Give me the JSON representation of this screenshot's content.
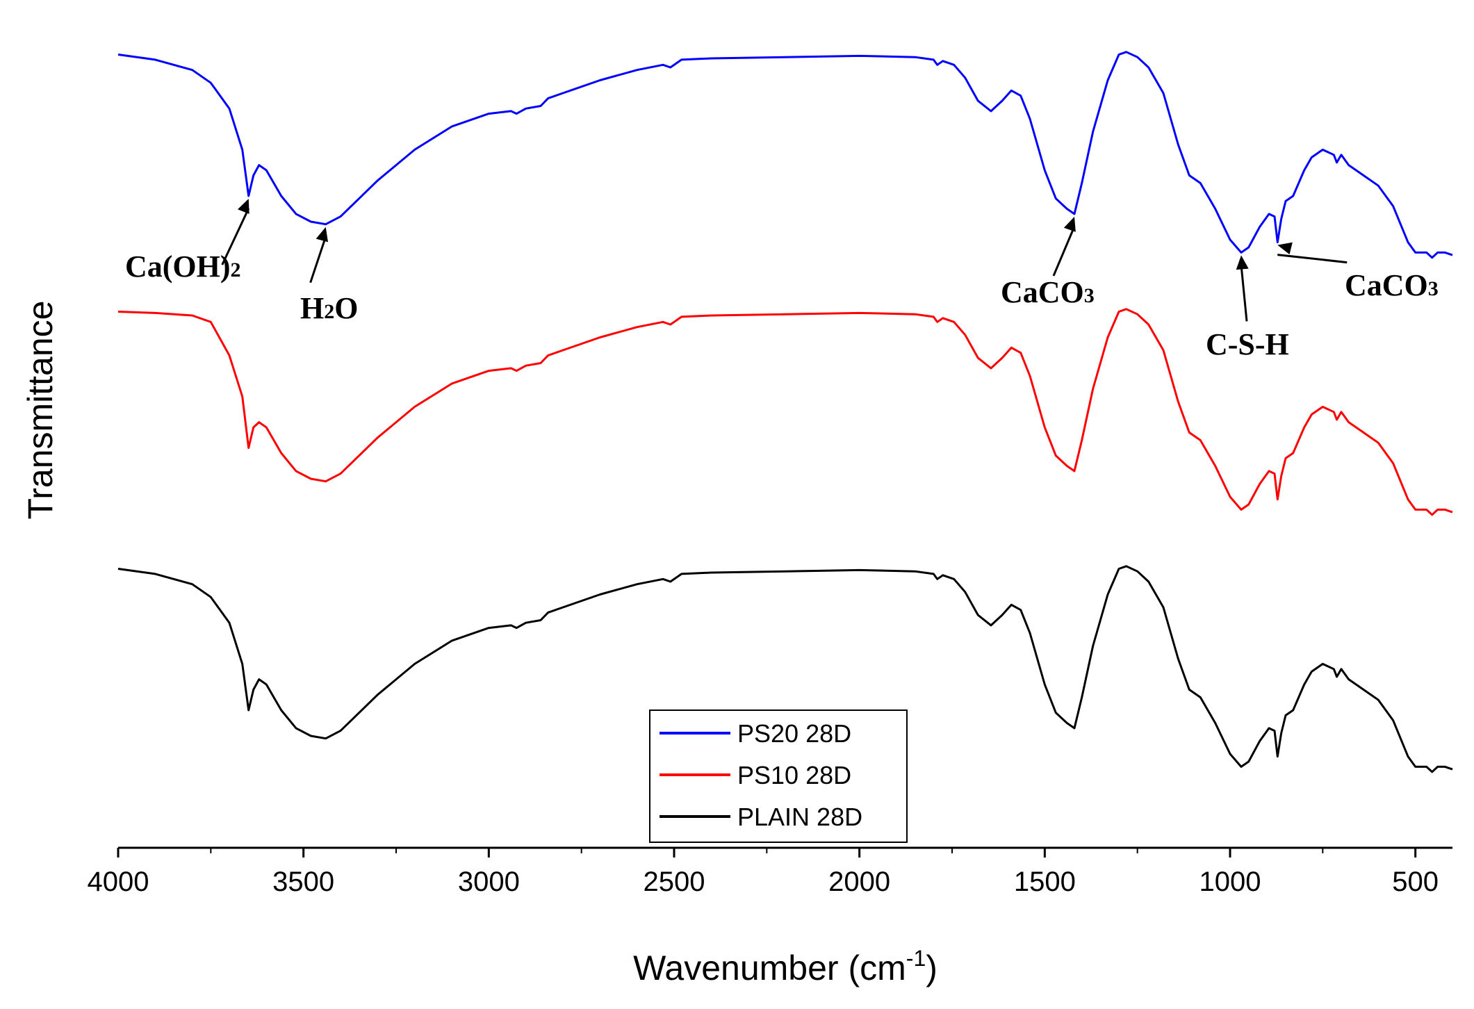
{
  "chart_data": {
    "type": "line",
    "xlabel": "Wavenumber (cm",
    "xlabel_sup": "-1",
    "xlabel_close": ")",
    "ylabel": "Transmittance",
    "xlim": [
      4000,
      400
    ],
    "x_reversed": true,
    "x_ticks": [
      4000,
      3500,
      3000,
      2500,
      2000,
      1500,
      1000,
      500
    ],
    "y_ticks_shown": false,
    "grid": false,
    "legend_position": "bottom-center",
    "series": [
      {
        "name": "PS20 28D",
        "color": "#0000ff",
        "offset": 2.0,
        "points": [
          [
            4000,
            0.95
          ],
          [
            3900,
            0.93
          ],
          [
            3800,
            0.89
          ],
          [
            3750,
            0.84
          ],
          [
            3700,
            0.74
          ],
          [
            3665,
            0.58
          ],
          [
            3648,
            0.4
          ],
          [
            3635,
            0.48
          ],
          [
            3620,
            0.52
          ],
          [
            3600,
            0.5
          ],
          [
            3560,
            0.4
          ],
          [
            3520,
            0.33
          ],
          [
            3480,
            0.3
          ],
          [
            3440,
            0.29
          ],
          [
            3400,
            0.32
          ],
          [
            3350,
            0.39
          ],
          [
            3300,
            0.46
          ],
          [
            3250,
            0.52
          ],
          [
            3200,
            0.58
          ],
          [
            3100,
            0.67
          ],
          [
            3000,
            0.72
          ],
          [
            2940,
            0.73
          ],
          [
            2925,
            0.72
          ],
          [
            2900,
            0.74
          ],
          [
            2860,
            0.75
          ],
          [
            2840,
            0.78
          ],
          [
            2800,
            0.8
          ],
          [
            2700,
            0.85
          ],
          [
            2600,
            0.89
          ],
          [
            2530,
            0.91
          ],
          [
            2510,
            0.9
          ],
          [
            2480,
            0.93
          ],
          [
            2400,
            0.935
          ],
          [
            2200,
            0.94
          ],
          [
            2000,
            0.945
          ],
          [
            1850,
            0.94
          ],
          [
            1800,
            0.93
          ],
          [
            1790,
            0.91
          ],
          [
            1775,
            0.925
          ],
          [
            1745,
            0.91
          ],
          [
            1715,
            0.86
          ],
          [
            1680,
            0.77
          ],
          [
            1645,
            0.73
          ],
          [
            1615,
            0.77
          ],
          [
            1590,
            0.81
          ],
          [
            1565,
            0.79
          ],
          [
            1540,
            0.7
          ],
          [
            1500,
            0.5
          ],
          [
            1470,
            0.39
          ],
          [
            1440,
            0.35
          ],
          [
            1420,
            0.33
          ],
          [
            1400,
            0.45
          ],
          [
            1370,
            0.65
          ],
          [
            1330,
            0.85
          ],
          [
            1300,
            0.95
          ],
          [
            1280,
            0.96
          ],
          [
            1250,
            0.94
          ],
          [
            1220,
            0.9
          ],
          [
            1180,
            0.8
          ],
          [
            1140,
            0.6
          ],
          [
            1110,
            0.48
          ],
          [
            1080,
            0.45
          ],
          [
            1040,
            0.35
          ],
          [
            1000,
            0.23
          ],
          [
            970,
            0.18
          ],
          [
            950,
            0.2
          ],
          [
            920,
            0.28
          ],
          [
            895,
            0.33
          ],
          [
            880,
            0.32
          ],
          [
            872,
            0.22
          ],
          [
            862,
            0.31
          ],
          [
            850,
            0.38
          ],
          [
            830,
            0.4
          ],
          [
            800,
            0.5
          ],
          [
            780,
            0.55
          ],
          [
            750,
            0.58
          ],
          [
            720,
            0.56
          ],
          [
            712,
            0.53
          ],
          [
            700,
            0.56
          ],
          [
            680,
            0.52
          ],
          [
            640,
            0.48
          ],
          [
            600,
            0.44
          ],
          [
            560,
            0.36
          ],
          [
            520,
            0.22
          ],
          [
            500,
            0.18
          ],
          [
            470,
            0.18
          ],
          [
            455,
            0.16
          ],
          [
            440,
            0.18
          ],
          [
            420,
            0.18
          ],
          [
            400,
            0.17
          ]
        ]
      },
      {
        "name": "PS10 28D",
        "color": "#ff0000",
        "offset": 1.0,
        "points": [
          [
            4000,
            0.95
          ],
          [
            3900,
            0.945
          ],
          [
            3800,
            0.935
          ],
          [
            3750,
            0.91
          ],
          [
            3700,
            0.78
          ],
          [
            3665,
            0.62
          ],
          [
            3648,
            0.42
          ],
          [
            3635,
            0.5
          ],
          [
            3620,
            0.52
          ],
          [
            3600,
            0.5
          ],
          [
            3560,
            0.4
          ],
          [
            3520,
            0.33
          ],
          [
            3480,
            0.3
          ],
          [
            3440,
            0.29
          ],
          [
            3400,
            0.32
          ],
          [
            3350,
            0.39
          ],
          [
            3300,
            0.46
          ],
          [
            3250,
            0.52
          ],
          [
            3200,
            0.58
          ],
          [
            3100,
            0.67
          ],
          [
            3000,
            0.72
          ],
          [
            2940,
            0.73
          ],
          [
            2925,
            0.72
          ],
          [
            2900,
            0.74
          ],
          [
            2860,
            0.75
          ],
          [
            2840,
            0.78
          ],
          [
            2800,
            0.8
          ],
          [
            2700,
            0.85
          ],
          [
            2600,
            0.89
          ],
          [
            2530,
            0.91
          ],
          [
            2510,
            0.9
          ],
          [
            2480,
            0.93
          ],
          [
            2400,
            0.935
          ],
          [
            2200,
            0.94
          ],
          [
            2000,
            0.945
          ],
          [
            1850,
            0.94
          ],
          [
            1800,
            0.93
          ],
          [
            1790,
            0.91
          ],
          [
            1775,
            0.925
          ],
          [
            1745,
            0.91
          ],
          [
            1715,
            0.86
          ],
          [
            1680,
            0.77
          ],
          [
            1645,
            0.73
          ],
          [
            1615,
            0.77
          ],
          [
            1590,
            0.81
          ],
          [
            1565,
            0.79
          ],
          [
            1540,
            0.7
          ],
          [
            1500,
            0.5
          ],
          [
            1470,
            0.39
          ],
          [
            1440,
            0.35
          ],
          [
            1420,
            0.33
          ],
          [
            1400,
            0.45
          ],
          [
            1370,
            0.65
          ],
          [
            1330,
            0.85
          ],
          [
            1300,
            0.95
          ],
          [
            1280,
            0.96
          ],
          [
            1250,
            0.94
          ],
          [
            1220,
            0.9
          ],
          [
            1180,
            0.8
          ],
          [
            1140,
            0.6
          ],
          [
            1110,
            0.48
          ],
          [
            1080,
            0.45
          ],
          [
            1040,
            0.35
          ],
          [
            1000,
            0.23
          ],
          [
            970,
            0.18
          ],
          [
            950,
            0.2
          ],
          [
            920,
            0.28
          ],
          [
            895,
            0.33
          ],
          [
            880,
            0.32
          ],
          [
            872,
            0.22
          ],
          [
            862,
            0.31
          ],
          [
            850,
            0.38
          ],
          [
            830,
            0.4
          ],
          [
            800,
            0.5
          ],
          [
            780,
            0.55
          ],
          [
            750,
            0.58
          ],
          [
            720,
            0.56
          ],
          [
            712,
            0.53
          ],
          [
            700,
            0.56
          ],
          [
            680,
            0.52
          ],
          [
            640,
            0.48
          ],
          [
            600,
            0.44
          ],
          [
            560,
            0.36
          ],
          [
            520,
            0.22
          ],
          [
            500,
            0.18
          ],
          [
            470,
            0.18
          ],
          [
            455,
            0.16
          ],
          [
            440,
            0.18
          ],
          [
            420,
            0.18
          ],
          [
            400,
            0.17
          ]
        ]
      },
      {
        "name": "PLAIN 28D",
        "color": "#000000",
        "offset": 0.0,
        "points": [
          [
            4000,
            0.95
          ],
          [
            3900,
            0.93
          ],
          [
            3800,
            0.89
          ],
          [
            3750,
            0.84
          ],
          [
            3700,
            0.74
          ],
          [
            3665,
            0.58
          ],
          [
            3648,
            0.4
          ],
          [
            3635,
            0.48
          ],
          [
            3620,
            0.52
          ],
          [
            3600,
            0.5
          ],
          [
            3560,
            0.4
          ],
          [
            3520,
            0.33
          ],
          [
            3480,
            0.3
          ],
          [
            3440,
            0.29
          ],
          [
            3400,
            0.32
          ],
          [
            3350,
            0.39
          ],
          [
            3300,
            0.46
          ],
          [
            3250,
            0.52
          ],
          [
            3200,
            0.58
          ],
          [
            3100,
            0.67
          ],
          [
            3000,
            0.72
          ],
          [
            2940,
            0.73
          ],
          [
            2925,
            0.72
          ],
          [
            2900,
            0.74
          ],
          [
            2860,
            0.75
          ],
          [
            2840,
            0.78
          ],
          [
            2800,
            0.8
          ],
          [
            2700,
            0.85
          ],
          [
            2600,
            0.89
          ],
          [
            2530,
            0.91
          ],
          [
            2510,
            0.9
          ],
          [
            2480,
            0.93
          ],
          [
            2400,
            0.935
          ],
          [
            2200,
            0.94
          ],
          [
            2000,
            0.945
          ],
          [
            1850,
            0.94
          ],
          [
            1800,
            0.93
          ],
          [
            1790,
            0.91
          ],
          [
            1775,
            0.925
          ],
          [
            1745,
            0.91
          ],
          [
            1715,
            0.86
          ],
          [
            1680,
            0.77
          ],
          [
            1645,
            0.73
          ],
          [
            1615,
            0.77
          ],
          [
            1590,
            0.81
          ],
          [
            1565,
            0.79
          ],
          [
            1540,
            0.7
          ],
          [
            1500,
            0.5
          ],
          [
            1470,
            0.39
          ],
          [
            1440,
            0.35
          ],
          [
            1420,
            0.33
          ],
          [
            1400,
            0.45
          ],
          [
            1370,
            0.65
          ],
          [
            1330,
            0.85
          ],
          [
            1300,
            0.95
          ],
          [
            1280,
            0.96
          ],
          [
            1250,
            0.94
          ],
          [
            1220,
            0.9
          ],
          [
            1180,
            0.8
          ],
          [
            1140,
            0.6
          ],
          [
            1110,
            0.48
          ],
          [
            1080,
            0.45
          ],
          [
            1040,
            0.35
          ],
          [
            1000,
            0.23
          ],
          [
            970,
            0.18
          ],
          [
            950,
            0.2
          ],
          [
            920,
            0.28
          ],
          [
            895,
            0.33
          ],
          [
            880,
            0.32
          ],
          [
            872,
            0.22
          ],
          [
            862,
            0.31
          ],
          [
            850,
            0.38
          ],
          [
            830,
            0.4
          ],
          [
            800,
            0.5
          ],
          [
            780,
            0.55
          ],
          [
            750,
            0.58
          ],
          [
            720,
            0.56
          ],
          [
            712,
            0.53
          ],
          [
            700,
            0.56
          ],
          [
            680,
            0.52
          ],
          [
            640,
            0.48
          ],
          [
            600,
            0.44
          ],
          [
            560,
            0.36
          ],
          [
            520,
            0.22
          ],
          [
            500,
            0.18
          ],
          [
            470,
            0.18
          ],
          [
            455,
            0.16
          ],
          [
            440,
            0.18
          ],
          [
            420,
            0.18
          ],
          [
            400,
            0.17
          ]
        ]
      }
    ],
    "annotations": [
      {
        "name": "ca-oh2",
        "base": "Ca(OH)",
        "sub": "2",
        "peak_x": 3648
      },
      {
        "name": "h2o",
        "base": "H",
        "sub": "2",
        "tail": "O",
        "peak_x": 3440
      },
      {
        "name": "caco3-1420",
        "base": "CaCO",
        "sub": "3",
        "peak_x": 1420
      },
      {
        "name": "csh",
        "base": "C-S-H",
        "peak_x": 970
      },
      {
        "name": "caco3-872",
        "base": "CaCO",
        "sub": "3",
        "peak_x": 872
      }
    ]
  }
}
